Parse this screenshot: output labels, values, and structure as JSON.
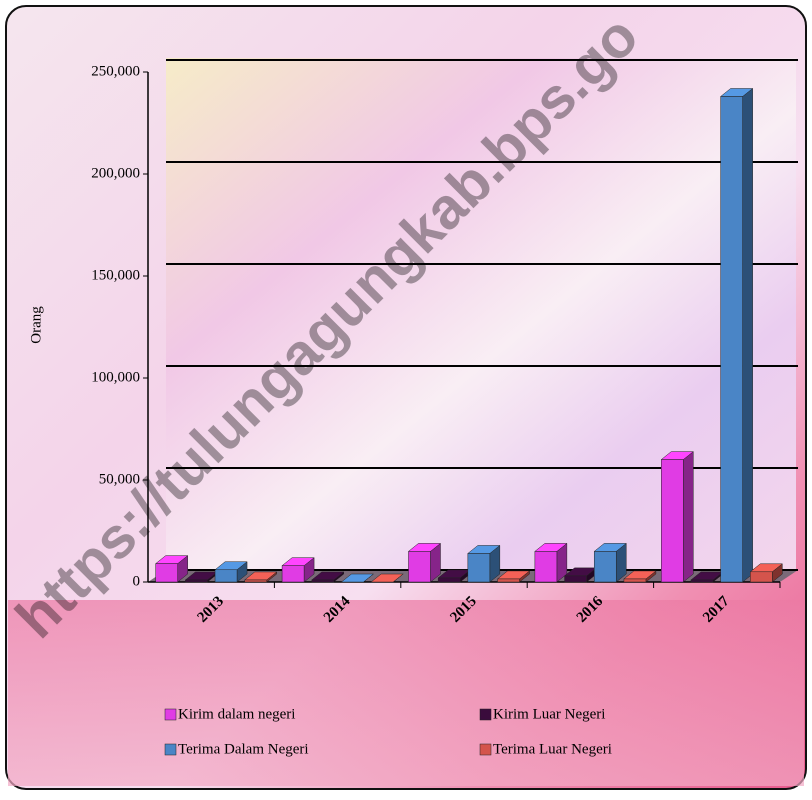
{
  "chart_data": {
    "type": "bar3d",
    "y_label": "Orang",
    "watermark": "https://tulungagungkab.bps.go",
    "categories": [
      "2013",
      "2014",
      "2015",
      "2016",
      "2017"
    ],
    "series": [
      {
        "name": "Kirim dalam negeri",
        "color": "#e03ce4",
        "values": [
          9000,
          8000,
          15000,
          15000,
          60000
        ]
      },
      {
        "name": "Kirim Luar Negeri",
        "color": "#3a0b3c",
        "values": [
          1000,
          1000,
          2000,
          3000,
          1000
        ]
      },
      {
        "name": "Terima Dalam Negeri",
        "color": "#4a85c6",
        "values": [
          6000,
          0,
          14000,
          15000,
          238000
        ]
      },
      {
        "name": "Terima Luar Negeri",
        "color": "#d4544c",
        "values": [
          1000,
          0,
          1500,
          1500,
          5000
        ]
      }
    ],
    "ylim": [
      0,
      250000
    ],
    "yticks": [
      0,
      {
        "value": 50000,
        "label": "50,000"
      },
      {
        "value": 100000,
        "label": "100,000"
      },
      {
        "value": 150000,
        "label": "150,000"
      },
      {
        "value": 200000,
        "label": "200,000"
      },
      {
        "value": 250000,
        "label": "250,000"
      }
    ],
    "grid": true
  }
}
